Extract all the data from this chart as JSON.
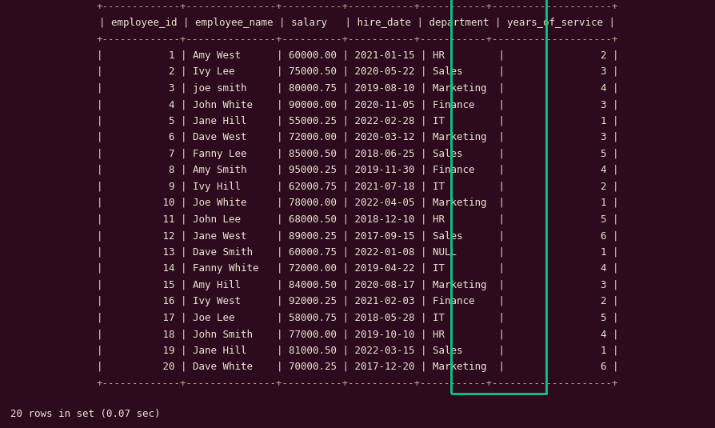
{
  "bg_color": "#2d0a1e",
  "text_color": "#e8e8d0",
  "highlight_color": "#00cc88",
  "separator_color": "#c8a882",
  "font_family": "monospace",
  "font_size": 9.0,
  "columns": [
    "employee_id",
    "employee_name",
    "salary",
    "hire_date",
    "department",
    "years_of_service"
  ],
  "rows": [
    [
      1,
      "Amy West",
      "60000.00",
      "2021-01-15",
      "HR",
      2
    ],
    [
      2,
      "Ivy Lee",
      "75000.50",
      "2020-05-22",
      "Sales",
      3
    ],
    [
      3,
      "joe smith",
      "80000.75",
      "2019-08-10",
      "Marketing",
      4
    ],
    [
      4,
      "John White",
      "90000.00",
      "2020-11-05",
      "Finance",
      3
    ],
    [
      5,
      "Jane Hill",
      "55000.25",
      "2022-02-28",
      "IT",
      1
    ],
    [
      6,
      "Dave West",
      "72000.00",
      "2020-03-12",
      "Marketing",
      3
    ],
    [
      7,
      "Fanny Lee",
      "85000.50",
      "2018-06-25",
      "Sales",
      5
    ],
    [
      8,
      "Amy Smith",
      "95000.25",
      "2019-11-30",
      "Finance",
      4
    ],
    [
      9,
      "Ivy Hill",
      "62000.75",
      "2021-07-18",
      "IT",
      2
    ],
    [
      10,
      "Joe White",
      "78000.00",
      "2022-04-05",
      "Marketing",
      1
    ],
    [
      11,
      "John Lee",
      "68000.50",
      "2018-12-10",
      "HR",
      5
    ],
    [
      12,
      "Jane West",
      "89000.25",
      "2017-09-15",
      "Sales",
      6
    ],
    [
      13,
      "Dave Smith",
      "60000.75",
      "2022-01-08",
      "NULL",
      1
    ],
    [
      14,
      "Fanny White",
      "72000.00",
      "2019-04-22",
      "IT",
      4
    ],
    [
      15,
      "Amy Hill",
      "84000.50",
      "2020-08-17",
      "Marketing",
      3
    ],
    [
      16,
      "Ivy West",
      "92000.25",
      "2021-02-03",
      "Finance",
      2
    ],
    [
      17,
      "Joe Lee",
      "58000.75",
      "2018-05-28",
      "IT",
      5
    ],
    [
      18,
      "John Smith",
      "77000.00",
      "2019-10-10",
      "HR",
      4
    ],
    [
      19,
      "Jane Hill",
      "81000.50",
      "2022-03-15",
      "Sales",
      1
    ],
    [
      20,
      "Dave White",
      "70000.25",
      "2017-12-20",
      "Marketing",
      6
    ]
  ],
  "footer": "20 rows in set (0.07 sec)",
  "sep_line": "+- - - - - - -+- - - - - - - +- - - - - +- - - - - -+- - - - - -+- - - - - - - - - -+",
  "header_fmt": "| {:>11} | {:<13} | {:<8} | {:<9} | {:<10} | {:>16} |",
  "data_fmt": "| {:>11} | {:<13} | {:>8} | {:>10} | {:<10} | {:>16} |"
}
